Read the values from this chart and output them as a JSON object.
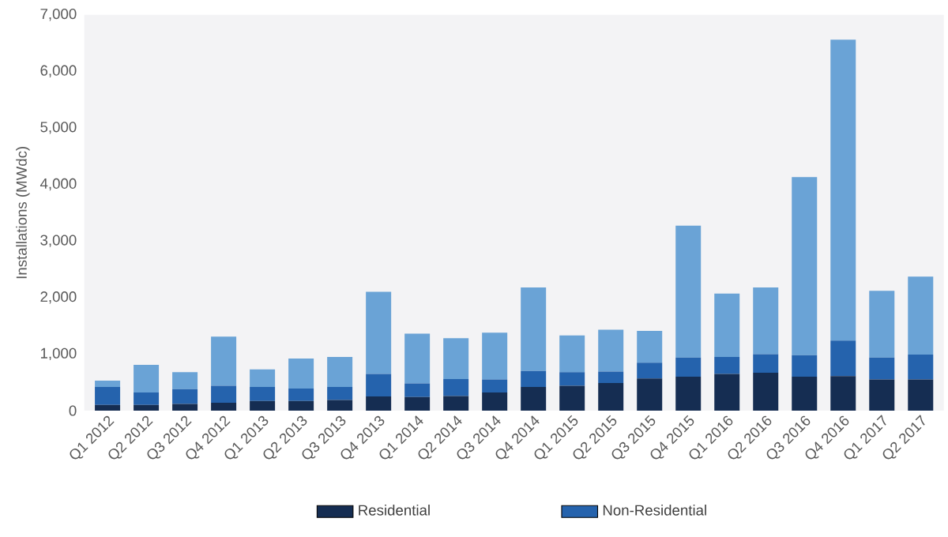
{
  "chart_data": {
    "type": "bar",
    "stacked": true,
    "ylabel": "Installations (MWdc)",
    "categories": [
      "Q1 2012",
      "Q2 2012",
      "Q3 2012",
      "Q4 2012",
      "Q1 2013",
      "Q2 2013",
      "Q3 2013",
      "Q4 2013",
      "Q1 2014",
      "Q2 2014",
      "Q3 2014",
      "Q4 2014",
      "Q1 2015",
      "Q2 2015",
      "Q3 2015",
      "Q4 2015",
      "Q1 2016",
      "Q2 2016",
      "Q3 2016",
      "Q4 2016",
      "Q1 2017",
      "Q2 2017"
    ],
    "series": [
      {
        "name": "Residential",
        "color": "#152d52",
        "values": [
          100,
          100,
          120,
          140,
          170,
          170,
          190,
          250,
          240,
          260,
          320,
          420,
          440,
          490,
          570,
          600,
          650,
          670,
          600,
          610,
          550,
          550
        ]
      },
      {
        "name": "Non-Residential",
        "color": "#2563ad",
        "values": [
          320,
          220,
          260,
          300,
          250,
          220,
          230,
          400,
          240,
          300,
          230,
          280,
          240,
          200,
          280,
          340,
          300,
          330,
          380,
          630,
          390,
          440
        ]
      },
      {
        "color": "#6aa3d6",
        "values": [
          110,
          490,
          300,
          870,
          310,
          530,
          530,
          1450,
          880,
          720,
          830,
          1480,
          650,
          740,
          560,
          2330,
          1120,
          1180,
          3150,
          5320,
          1180,
          1380
        ]
      }
    ],
    "ylim": [
      0,
      7000
    ],
    "yticks": [
      0,
      {
        "value": 1000,
        "label": "1,000"
      },
      {
        "value": 2000,
        "label": "2,000"
      },
      {
        "value": 3000,
        "label": "3,000"
      },
      {
        "value": 4000,
        "label": "4,000"
      },
      {
        "value": 5000,
        "label": "5,000"
      },
      {
        "value": 6000,
        "label": "6,000"
      },
      {
        "value": 7000,
        "label": "7,000"
      }
    ],
    "legend": "bottom"
  }
}
